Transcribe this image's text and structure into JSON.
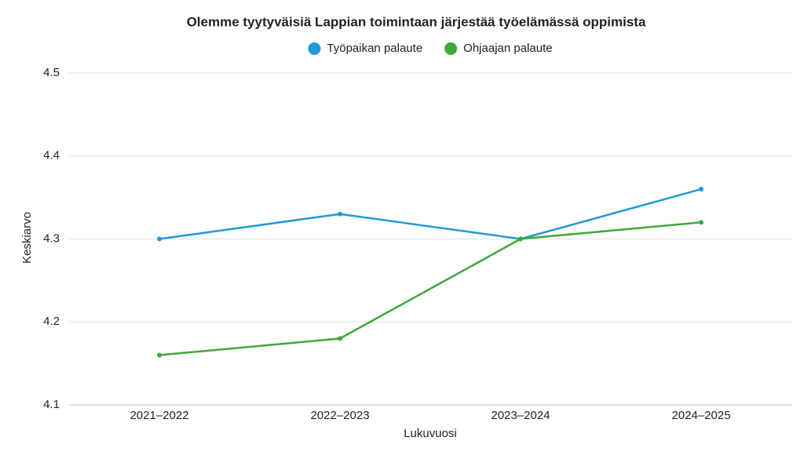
{
  "chart_data": {
    "type": "line",
    "title": "Olemme tyytyväisiä Lappian toimintaan järjestää työelämässä oppimista",
    "x_label": "Lukuvuosi",
    "y_label": "Keskiarvo",
    "categories": [
      "2021–2022",
      "2022–2023",
      "2023–2024",
      "2024–2025"
    ],
    "series": [
      {
        "name": "Työpaikan palaute",
        "color": "#1f9ad7",
        "values": [
          4.3,
          4.33,
          4.3,
          4.36
        ]
      },
      {
        "name": "Ohjaajan palaute",
        "color": "#3ea83a",
        "values": [
          4.16,
          4.18,
          4.3,
          4.32
        ]
      }
    ],
    "ylim": [
      4.1,
      4.5
    ],
    "yticks": [
      4.1,
      4.2,
      4.3,
      4.4,
      4.5
    ],
    "grid": true
  }
}
